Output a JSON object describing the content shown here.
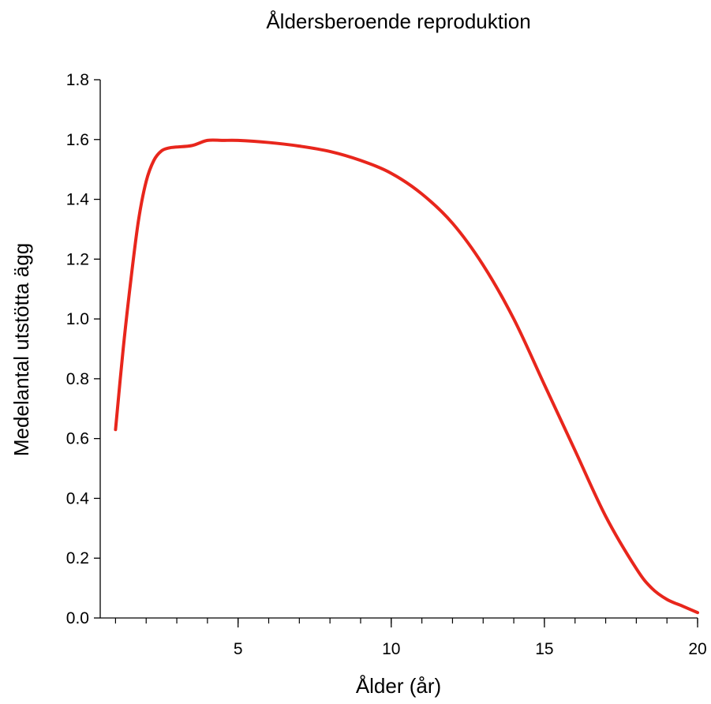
{
  "chart_data": {
    "type": "line",
    "title": "Åldersberoende reproduktion",
    "xlabel": "Ålder (år)",
    "ylabel": "Medelantal utstötta ägg",
    "xlim": [
      0.5,
      20
    ],
    "ylim": [
      0,
      1.8
    ],
    "x_ticks": [
      5,
      10,
      15,
      20
    ],
    "x_minor_ticks": [
      1,
      2,
      3,
      4,
      5,
      6,
      7,
      8,
      9,
      10,
      11,
      12,
      13,
      14,
      15,
      16,
      17,
      18,
      19,
      20
    ],
    "y_ticks": [
      0.0,
      0.2,
      0.4,
      0.6,
      0.8,
      1.0,
      1.2,
      1.4,
      1.6,
      1.8
    ],
    "grid": false,
    "series": [
      {
        "color": "#e8261c",
        "x": [
          1.0,
          1.25,
          1.5,
          1.75,
          2.0,
          2.25,
          2.5,
          2.75,
          3.0,
          3.5,
          4.0,
          4.5,
          5.0,
          6.0,
          7.0,
          8.0,
          9.0,
          10.0,
          11.0,
          12.0,
          13.0,
          14.0,
          15.0,
          16.0,
          17.0,
          18.0,
          18.5,
          19.0,
          19.5,
          20.0
        ],
        "y": [
          0.63,
          0.9,
          1.13,
          1.33,
          1.46,
          1.53,
          1.562,
          1.572,
          1.575,
          1.58,
          1.597,
          1.597,
          1.597,
          1.59,
          1.578,
          1.56,
          1.53,
          1.487,
          1.418,
          1.32,
          1.18,
          1.0,
          0.78,
          0.56,
          0.34,
          0.165,
          0.1,
          0.062,
          0.04,
          0.018
        ]
      }
    ]
  }
}
